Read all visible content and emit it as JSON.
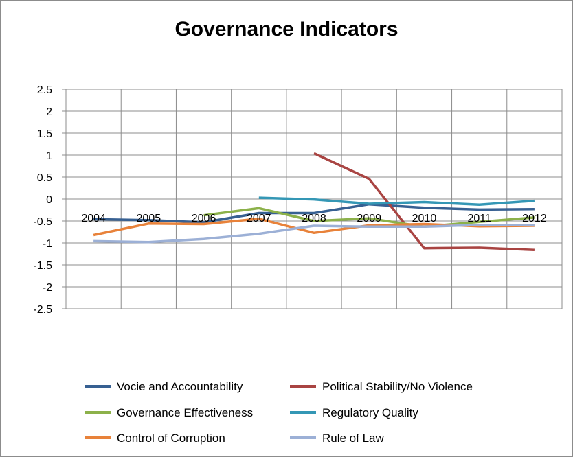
{
  "chart_data": {
    "type": "line",
    "title": "Governance Indicators",
    "xlabel": "",
    "ylabel": "",
    "categories": [
      "2004",
      "2005",
      "2006",
      "2007",
      "2008",
      "2009",
      "2010",
      "2011",
      "2012"
    ],
    "ylim": [
      -2.5,
      2.5
    ],
    "yticks": [
      "2.5",
      "2",
      "1.5",
      "1",
      "0.5",
      "0",
      "-0.5",
      "-1",
      "-1.5",
      "-2",
      "-2.5"
    ],
    "grid": true,
    "legend_position": "bottom",
    "series": [
      {
        "name": "Vocie and Accountability",
        "color": "#376092",
        "values": [
          -0.46,
          -0.48,
          -0.53,
          -0.32,
          -0.32,
          -0.12,
          -0.2,
          -0.24,
          -0.23
        ]
      },
      {
        "name": "Political Stability/No Violence",
        "color": "#A94442",
        "values": [
          null,
          null,
          null,
          null,
          1.04,
          0.46,
          -1.12,
          -1.11,
          -1.16
        ]
      },
      {
        "name": "Governance Effectiveness",
        "color": "#8CB14A",
        "values": [
          null,
          null,
          -0.37,
          -0.21,
          -0.5,
          -0.44,
          -0.63,
          -0.52,
          -0.42
        ]
      },
      {
        "name": "Regulatory Quality",
        "color": "#3497B5",
        "values": [
          null,
          null,
          null,
          0.03,
          -0.01,
          -0.11,
          -0.07,
          -0.13,
          -0.04
        ]
      },
      {
        "name": "Control of Corruption",
        "color": "#E8823A",
        "values": [
          -0.82,
          -0.56,
          -0.57,
          -0.45,
          -0.77,
          -0.6,
          -0.57,
          -0.62,
          -0.61
        ]
      },
      {
        "name": "Rule of Law",
        "color": "#9CB0D6",
        "values": [
          -0.96,
          -0.98,
          -0.91,
          -0.79,
          -0.61,
          -0.63,
          -0.63,
          -0.59,
          -0.6
        ]
      }
    ]
  }
}
